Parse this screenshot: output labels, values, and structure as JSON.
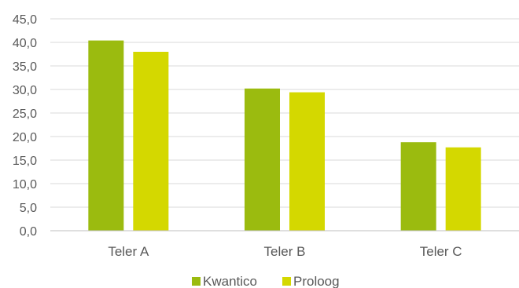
{
  "chart_data": {
    "type": "bar",
    "categories": [
      "Teler A",
      "Teler B",
      "Teler C"
    ],
    "series": [
      {
        "name": "Kwantico",
        "values": [
          40.4,
          30.2,
          18.8
        ],
        "color": "#9bbb0f"
      },
      {
        "name": "Proloog",
        "values": [
          38.0,
          29.4,
          17.7
        ],
        "color": "#d4d800"
      }
    ],
    "ylim": [
      0,
      45
    ],
    "yticks": [
      "0,0",
      "5,0",
      "10,0",
      "15,0",
      "20,0",
      "25,0",
      "30,0",
      "35,0",
      "40,0",
      "45,0"
    ],
    "ytick_values": [
      0,
      5,
      10,
      15,
      20,
      25,
      30,
      35,
      40,
      45
    ],
    "grid": true,
    "legend_position": "bottom",
    "title": "",
    "xlabel": "",
    "ylabel": ""
  }
}
